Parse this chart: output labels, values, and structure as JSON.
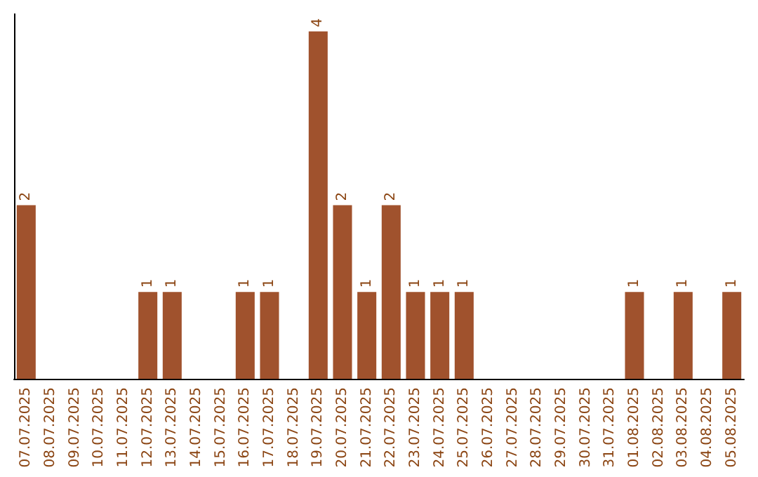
{
  "chart_data": {
    "type": "bar",
    "categories": [
      "07.07.2025",
      "08.07.2025",
      "09.07.2025",
      "10.07.2025",
      "11.07.2025",
      "12.07.2025",
      "13.07.2025",
      "14.07.2025",
      "15.07.2025",
      "16.07.2025",
      "17.07.2025",
      "18.07.2025",
      "19.07.2025",
      "20.07.2025",
      "21.07.2025",
      "22.07.2025",
      "23.07.2025",
      "24.07.2025",
      "25.07.2025",
      "26.07.2025",
      "27.07.2025",
      "28.07.2025",
      "29.07.2025",
      "30.07.2025",
      "31.07.2025",
      "01.08.2025",
      "02.08.2025",
      "03.08.2025",
      "04.08.2025",
      "05.08.2025"
    ],
    "values": [
      2,
      0,
      0,
      0,
      0,
      1,
      1,
      0,
      0,
      1,
      1,
      0,
      4,
      2,
      1,
      2,
      1,
      1,
      1,
      0,
      0,
      0,
      0,
      0,
      0,
      1,
      0,
      1,
      0,
      1
    ],
    "value_labels": [
      "2",
      null,
      null,
      null,
      null,
      "1",
      "1",
      null,
      null,
      "1",
      "1",
      null,
      "4",
      "2",
      "1",
      "2",
      "1",
      "1",
      "1",
      null,
      null,
      null,
      null,
      null,
      null,
      "1",
      null,
      "1",
      null,
      "1"
    ],
    "color": "#a0522d",
    "ylim": [
      0,
      4.2
    ],
    "tick_labels": "x"
  }
}
